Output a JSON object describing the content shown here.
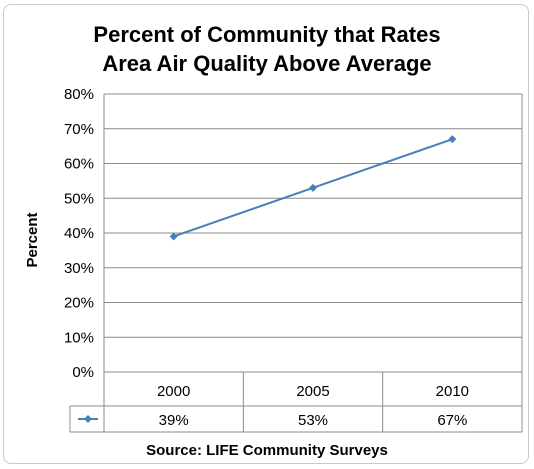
{
  "chart_data": {
    "type": "line",
    "title_lines": [
      "Percent of Community that Rates",
      "Area Air Quality Above Average"
    ],
    "ylabel": "Percent",
    "xlabel": "",
    "categories": [
      "2000",
      "2005",
      "2010"
    ],
    "series": [
      {
        "name": "",
        "values": [
          39,
          53,
          67
        ],
        "color": "#4a7ebb"
      }
    ],
    "data_table_labels": [
      "39%",
      "53%",
      "67%"
    ],
    "ylim": [
      0,
      80
    ],
    "y_ticks": [
      "0%",
      "10%",
      "20%",
      "30%",
      "40%",
      "50%",
      "60%",
      "70%",
      "80%"
    ],
    "grid": true,
    "legend": "data-table-key",
    "source": "Source:  LIFE Community Surveys"
  }
}
